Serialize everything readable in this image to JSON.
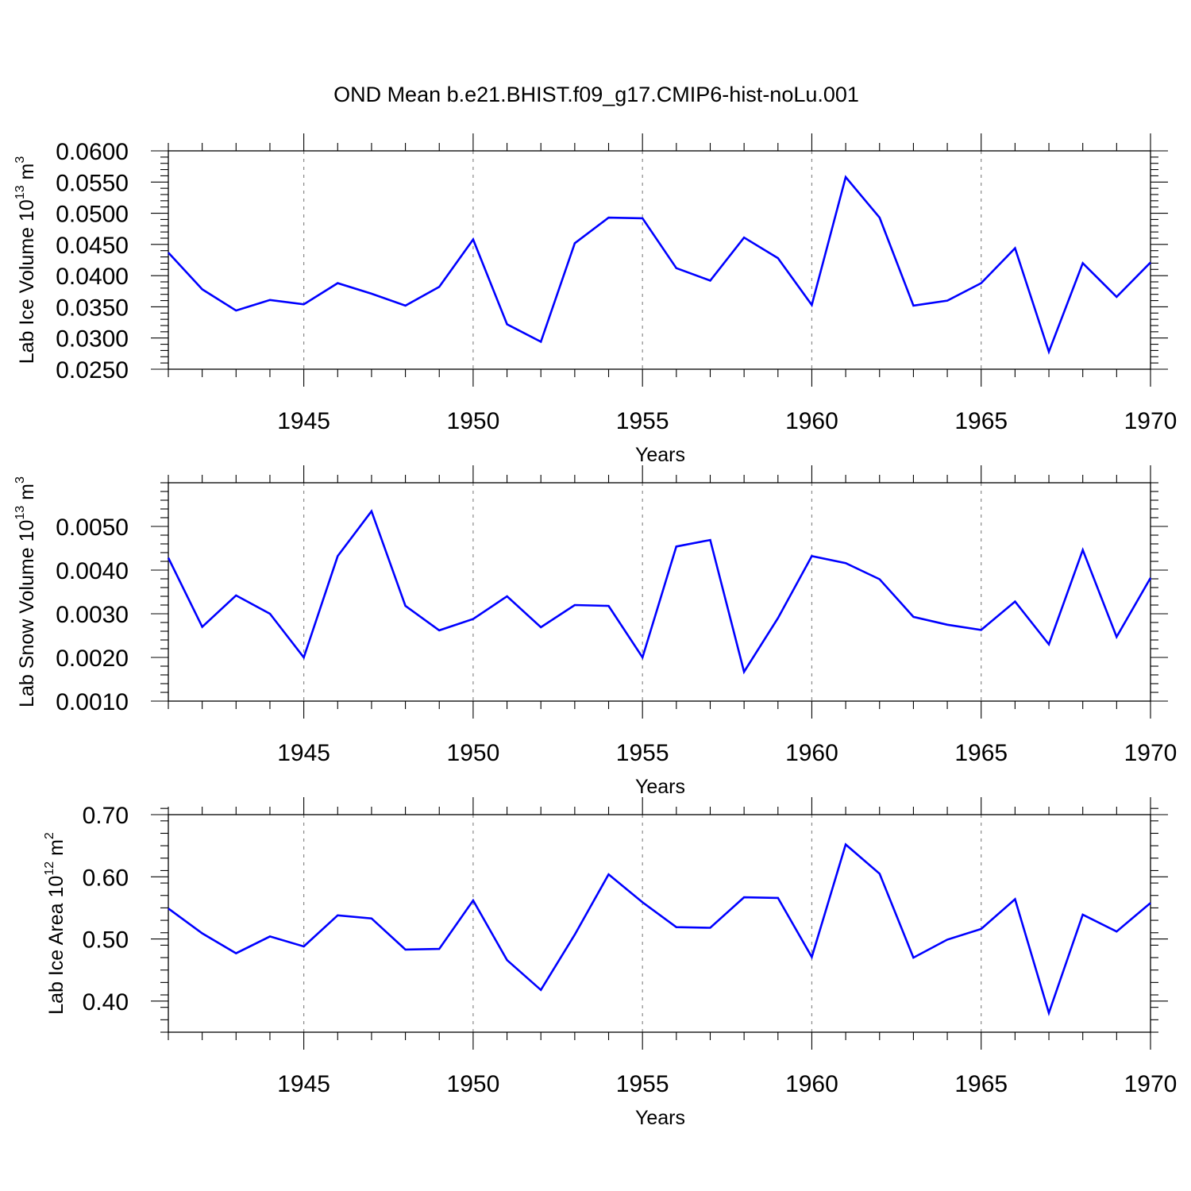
{
  "title": "OND Mean b.e21.BHIST.f09_g17.CMIP6-hist-noLu.001",
  "series_color": "#0000ff",
  "chart_data": [
    {
      "type": "line",
      "id": "ice-volume",
      "ylabel_main": "Lab Ice Volume 10",
      "ylabel_sup": "13",
      "ylabel_unit": " m",
      "ylabel_unit_sup": "3",
      "xlabel": "Years",
      "xlim": [
        1941,
        1970
      ],
      "ylim": [
        0.025,
        0.06
      ],
      "x_ticks": [
        1945,
        1950,
        1955,
        1960,
        1965,
        1970
      ],
      "x_tick_labels": [
        "1945",
        "1950",
        "1955",
        "1960",
        "1965",
        "1970"
      ],
      "y_ticks": [
        0.025,
        0.03,
        0.035,
        0.04,
        0.045,
        0.05,
        0.055,
        0.06
      ],
      "y_tick_labels": [
        "0.0250",
        "0.0300",
        "0.0350",
        "0.0400",
        "0.0450",
        "0.0500",
        "0.0550",
        "0.0600"
      ],
      "x": [
        1941,
        1942,
        1943,
        1944,
        1945,
        1946,
        1947,
        1948,
        1949,
        1950,
        1951,
        1952,
        1953,
        1954,
        1955,
        1956,
        1957,
        1958,
        1959,
        1960,
        1961,
        1962,
        1963,
        1964,
        1965,
        1966,
        1967,
        1968,
        1969,
        1970
      ],
      "values": [
        0.0437,
        0.0378,
        0.0344,
        0.0361,
        0.0354,
        0.0388,
        0.0371,
        0.0352,
        0.0382,
        0.0458,
        0.0322,
        0.0294,
        0.0452,
        0.0493,
        0.0492,
        0.0412,
        0.0392,
        0.0461,
        0.0428,
        0.0353,
        0.0558,
        0.0493,
        0.0352,
        0.036,
        0.0388,
        0.0444,
        0.0278,
        0.042,
        0.0366,
        0.0421
      ]
    },
    {
      "type": "line",
      "id": "snow-volume",
      "ylabel_main": "Lab Snow Volume 10",
      "ylabel_sup": "13",
      "ylabel_unit": " m",
      "ylabel_unit_sup": "3",
      "xlabel": "Years",
      "xlim": [
        1941,
        1970
      ],
      "ylim": [
        0.001,
        0.006
      ],
      "x_ticks": [
        1945,
        1950,
        1955,
        1960,
        1965,
        1970
      ],
      "x_tick_labels": [
        "1945",
        "1950",
        "1955",
        "1960",
        "1965",
        "1970"
      ],
      "y_ticks": [
        0.001,
        0.002,
        0.003,
        0.004,
        0.005
      ],
      "y_tick_labels": [
        "0.0010",
        "0.0020",
        "0.0030",
        "0.0040",
        "0.0050"
      ],
      "x": [
        1941,
        1942,
        1943,
        1944,
        1945,
        1946,
        1947,
        1948,
        1949,
        1950,
        1951,
        1952,
        1953,
        1954,
        1955,
        1956,
        1957,
        1958,
        1959,
        1960,
        1961,
        1962,
        1963,
        1964,
        1965,
        1966,
        1967,
        1968,
        1969,
        1970
      ],
      "values": [
        0.00428,
        0.0027,
        0.00342,
        0.003,
        0.002,
        0.00432,
        0.00535,
        0.00318,
        0.00262,
        0.00288,
        0.0034,
        0.00269,
        0.0032,
        0.00318,
        0.002,
        0.00454,
        0.00469,
        0.00167,
        0.0029,
        0.00432,
        0.00416,
        0.00379,
        0.00293,
        0.00275,
        0.00263,
        0.00328,
        0.0023,
        0.00446,
        0.00247,
        0.00382
      ]
    },
    {
      "type": "line",
      "id": "ice-area",
      "ylabel_main": "Lab Ice Area 10",
      "ylabel_sup": "12",
      "ylabel_unit": " m",
      "ylabel_unit_sup": "2",
      "xlabel": "Years",
      "xlim": [
        1941,
        1970
      ],
      "ylim": [
        0.35,
        0.7
      ],
      "x_ticks": [
        1945,
        1950,
        1955,
        1960,
        1965,
        1970
      ],
      "x_tick_labels": [
        "1945",
        "1950",
        "1955",
        "1960",
        "1965",
        "1970"
      ],
      "y_ticks": [
        0.4,
        0.5,
        0.6,
        0.7
      ],
      "y_tick_labels": [
        "0.40",
        "0.50",
        "0.60",
        "0.70"
      ],
      "x": [
        1941,
        1942,
        1943,
        1944,
        1945,
        1946,
        1947,
        1948,
        1949,
        1950,
        1951,
        1952,
        1953,
        1954,
        1955,
        1956,
        1957,
        1958,
        1959,
        1960,
        1961,
        1962,
        1963,
        1964,
        1965,
        1966,
        1967,
        1968,
        1969,
        1970
      ],
      "values": [
        0.549,
        0.509,
        0.477,
        0.504,
        0.488,
        0.538,
        0.533,
        0.483,
        0.484,
        0.562,
        0.466,
        0.418,
        0.507,
        0.604,
        0.559,
        0.519,
        0.518,
        0.567,
        0.566,
        0.471,
        0.652,
        0.605,
        0.47,
        0.499,
        0.516,
        0.564,
        0.381,
        0.539,
        0.512,
        0.558
      ]
    }
  ]
}
